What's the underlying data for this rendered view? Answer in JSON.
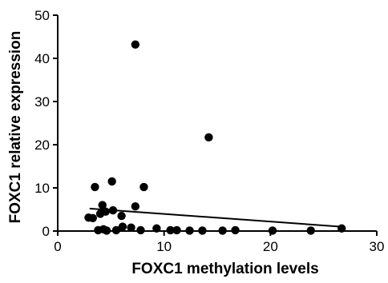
{
  "chart_data": {
    "type": "scatter",
    "title": "",
    "xlabel": "FOXC1 methylation levels",
    "ylabel": "FOXC1 relative expression",
    "xlim": [
      0,
      30
    ],
    "ylim": [
      0,
      50
    ],
    "x_ticks": [
      0,
      10,
      20,
      30
    ],
    "y_ticks": [
      0,
      10,
      20,
      30,
      40,
      50
    ],
    "grid": false,
    "legend": "none",
    "marker_color": "#000000",
    "points": [
      {
        "x": 7.3,
        "y": 43.2
      },
      {
        "x": 14.2,
        "y": 21.7
      },
      {
        "x": 5.1,
        "y": 11.5
      },
      {
        "x": 3.5,
        "y": 10.2
      },
      {
        "x": 8.1,
        "y": 10.2
      },
      {
        "x": 4.2,
        "y": 6.0
      },
      {
        "x": 7.3,
        "y": 5.7
      },
      {
        "x": 4.5,
        "y": 4.5
      },
      {
        "x": 5.2,
        "y": 4.8
      },
      {
        "x": 4.0,
        "y": 4.0
      },
      {
        "x": 6.0,
        "y": 3.5
      },
      {
        "x": 2.9,
        "y": 3.1
      },
      {
        "x": 3.3,
        "y": 3.0
      },
      {
        "x": 6.1,
        "y": 1.0
      },
      {
        "x": 6.9,
        "y": 0.8
      },
      {
        "x": 9.3,
        "y": 0.6
      },
      {
        "x": 4.3,
        "y": 0.4
      },
      {
        "x": 5.5,
        "y": 0.2
      },
      {
        "x": 7.8,
        "y": 0.2
      },
      {
        "x": 3.8,
        "y": 0.2
      },
      {
        "x": 4.6,
        "y": 0.1
      },
      {
        "x": 11.2,
        "y": 0.2
      },
      {
        "x": 10.6,
        "y": 0.2
      },
      {
        "x": 12.4,
        "y": 0.1
      },
      {
        "x": 13.6,
        "y": 0.1
      },
      {
        "x": 15.5,
        "y": 0.1
      },
      {
        "x": 16.7,
        "y": 0.2
      },
      {
        "x": 20.2,
        "y": 0.1
      },
      {
        "x": 23.8,
        "y": 0.1
      },
      {
        "x": 26.7,
        "y": 0.6
      }
    ],
    "trendline": {
      "x": [
        3.0,
        26.7
      ],
      "y": [
        5.2,
        1.0
      ]
    }
  }
}
